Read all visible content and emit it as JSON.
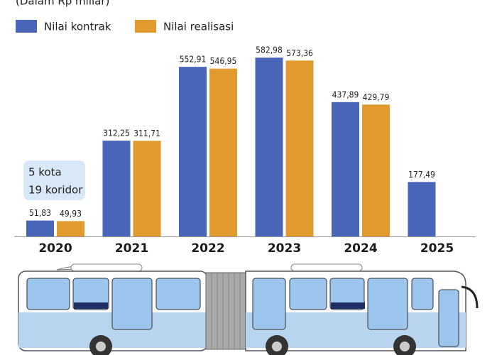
{
  "chart_data": {
    "type": "bar",
    "subtitle": "(Dalam Rp miliar)",
    "categories": [
      "2020",
      "2021",
      "2022",
      "2023",
      "2024",
      "2025"
    ],
    "series": [
      {
        "name": "Nilai kontrak",
        "color": "#4a66b8",
        "values": [
          51.83,
          312.25,
          552.91,
          582.98,
          437.89,
          177.49
        ],
        "value_labels": [
          "51,83",
          "312,25",
          "552,91",
          "582,98",
          "437,89",
          "177,49"
        ]
      },
      {
        "name": "Nilai realisasi",
        "color": "#e09a2e",
        "values": [
          49.93,
          311.71,
          546.95,
          573.36,
          429.79,
          null
        ],
        "value_labels": [
          "49,93",
          "311,71",
          "546,95",
          "573,36",
          "429,79",
          null
        ]
      }
    ],
    "annotation": [
      "5 kota",
      "19 koridor"
    ]
  }
}
